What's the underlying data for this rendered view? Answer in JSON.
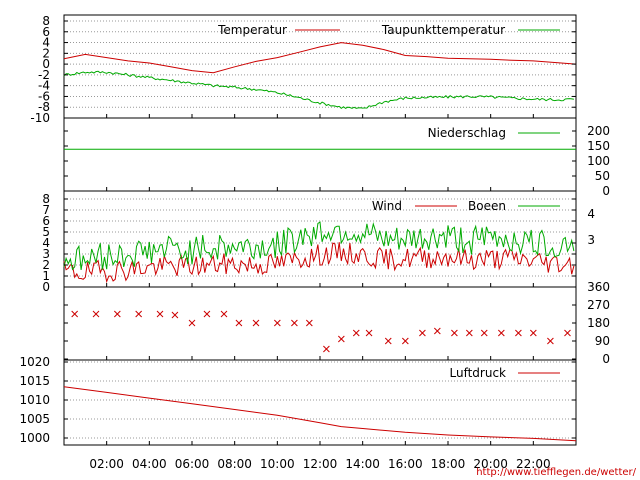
{
  "chart_data": [
    {
      "type": "line",
      "panel": "temperature",
      "x_range_hours": [
        0,
        24
      ],
      "ylim": [
        -10,
        8
      ],
      "yticks": [
        "8",
        "6",
        "4",
        "2",
        "0",
        "-2",
        "-4",
        "-6",
        "-8",
        "-10"
      ],
      "grid": true,
      "legend_position": "top-right",
      "series": [
        {
          "name": "Temperatur",
          "color": "#cc0000",
          "x": [
            0,
            1,
            2,
            3,
            4,
            5,
            6,
            7,
            8,
            9,
            10,
            11,
            12,
            13,
            14,
            15,
            16,
            17,
            18,
            19,
            20,
            21,
            22,
            23,
            24
          ],
          "values": [
            1,
            1.8,
            1.2,
            0.6,
            0.2,
            -0.5,
            -1.2,
            -1.6,
            -0.5,
            0.5,
            1.2,
            2.2,
            3.2,
            4.0,
            3.5,
            2.7,
            1.6,
            1.4,
            1.1,
            1.0,
            0.9,
            0.7,
            0.6,
            0.3,
            0.0
          ]
        },
        {
          "name": "Taupunkttemperatur",
          "color": "#00aa00",
          "x": [
            0,
            1,
            2,
            3,
            4,
            5,
            6,
            7,
            8,
            9,
            10,
            11,
            12,
            13,
            14,
            15,
            16,
            17,
            18,
            19,
            20,
            21,
            22,
            23,
            24
          ],
          "values": [
            -2,
            -1.5,
            -1.5,
            -2.0,
            -2.5,
            -3.0,
            -3.5,
            -4.0,
            -4.3,
            -4.7,
            -5.3,
            -6.2,
            -7.2,
            -8.0,
            -8.3,
            -7.0,
            -6.3,
            -6.2,
            -6.1,
            -6.0,
            -6.1,
            -6.3,
            -6.5,
            -6.6,
            -6.5
          ]
        }
      ]
    },
    {
      "type": "line",
      "panel": "precipitation",
      "ylim": [
        0,
        200
      ],
      "yticks": [
        "200",
        "150",
        "100",
        "50",
        "0"
      ],
      "legend_position": "top-right",
      "series": [
        {
          "name": "Niederschlag",
          "color": "#00aa00",
          "x": [
            0,
            24
          ],
          "values": [
            139,
            139
          ]
        }
      ]
    },
    {
      "type": "line",
      "panel": "wind",
      "ylim": [
        0,
        8
      ],
      "yticks": [
        "8",
        "7",
        "6",
        "5",
        "4",
        "3",
        "2",
        "1",
        "0"
      ],
      "right_labels": [
        "4",
        "3"
      ],
      "legend_position": "top-right",
      "series": [
        {
          "name": "Wind",
          "color": "#cc0000",
          "x": [
            0,
            1,
            2,
            3,
            4,
            5,
            6,
            7,
            8,
            9,
            10,
            11,
            12,
            13,
            14,
            15,
            16,
            17,
            18,
            19,
            20,
            21,
            22,
            23,
            24
          ],
          "values": [
            1.4,
            1.3,
            1.5,
            1.6,
            1.8,
            1.9,
            1.9,
            2.0,
            2.1,
            2.0,
            2.1,
            2.6,
            2.9,
            3.1,
            2.9,
            2.5,
            2.6,
            2.7,
            2.8,
            2.5,
            2.6,
            2.6,
            2.4,
            2.2,
            2.1
          ]
        },
        {
          "name": "Boeen",
          "color": "#00aa00",
          "x": [
            0,
            1,
            2,
            3,
            4,
            5,
            6,
            7,
            8,
            9,
            10,
            11,
            12,
            13,
            14,
            15,
            16,
            17,
            18,
            19,
            20,
            21,
            22,
            23,
            24
          ],
          "values": [
            2.6,
            2.5,
            2.8,
            3.0,
            3.3,
            3.5,
            3.3,
            3.6,
            3.7,
            3.6,
            3.8,
            4.6,
            5.1,
            5.2,
            4.8,
            4.1,
            4.2,
            4.4,
            4.6,
            4.2,
            4.5,
            4.4,
            4.0,
            3.8,
            4.1
          ]
        }
      ]
    },
    {
      "type": "scatter",
      "panel": "wind_direction",
      "ylim": [
        0,
        360
      ],
      "yticks": [
        "360",
        "270",
        "180",
        "90",
        "0"
      ],
      "series": [
        {
          "name": "",
          "color": "#cc0000",
          "x": [
            0.5,
            1.5,
            2.5,
            3.5,
            4.5,
            5.2,
            6.0,
            6.7,
            7.5,
            8.2,
            9.0,
            10.0,
            10.8,
            11.5,
            12.3,
            13.0,
            13.7,
            14.3,
            15.2,
            16.0,
            16.8,
            17.5,
            18.3,
            19.0,
            19.7,
            20.5,
            21.3,
            22.0,
            22.8,
            23.6
          ],
          "values": [
            225,
            225,
            225,
            225,
            225,
            220,
            180,
            225,
            225,
            180,
            180,
            180,
            180,
            180,
            50,
            100,
            130,
            130,
            90,
            90,
            130,
            140,
            130,
            130,
            130,
            130,
            130,
            130,
            90,
            130
          ]
        }
      ]
    },
    {
      "type": "line",
      "panel": "pressure",
      "ylim": [
        998,
        1022
      ],
      "yticks": [
        "1020",
        "1015",
        "1010",
        "1005",
        "1000"
      ],
      "legend_position": "top-right",
      "series": [
        {
          "name": "Luftdruck",
          "color": "#cc0000",
          "x": [
            0,
            2,
            4,
            6,
            8,
            10,
            11,
            12,
            13,
            14,
            16,
            18,
            20,
            22,
            24
          ],
          "values": [
            1013.5,
            1012,
            1010.5,
            1009,
            1007.5,
            1006,
            1005,
            1004,
            1003,
            1002.5,
            1001.5,
            1000.8,
            1000.3,
            999.9,
            999.3
          ]
        }
      ]
    }
  ],
  "x_axis": {
    "labels": [
      "02:00",
      "04:00",
      "06:00",
      "08:00",
      "10:00",
      "12:00",
      "14:00",
      "16:00",
      "18:00",
      "20:00",
      "22:00"
    ],
    "hours": [
      2,
      4,
      6,
      8,
      10,
      12,
      14,
      16,
      18,
      20,
      22
    ]
  },
  "credit": {
    "text": "http://www.tiefflegen.de/wetter/",
    "color": "#cc0000"
  }
}
